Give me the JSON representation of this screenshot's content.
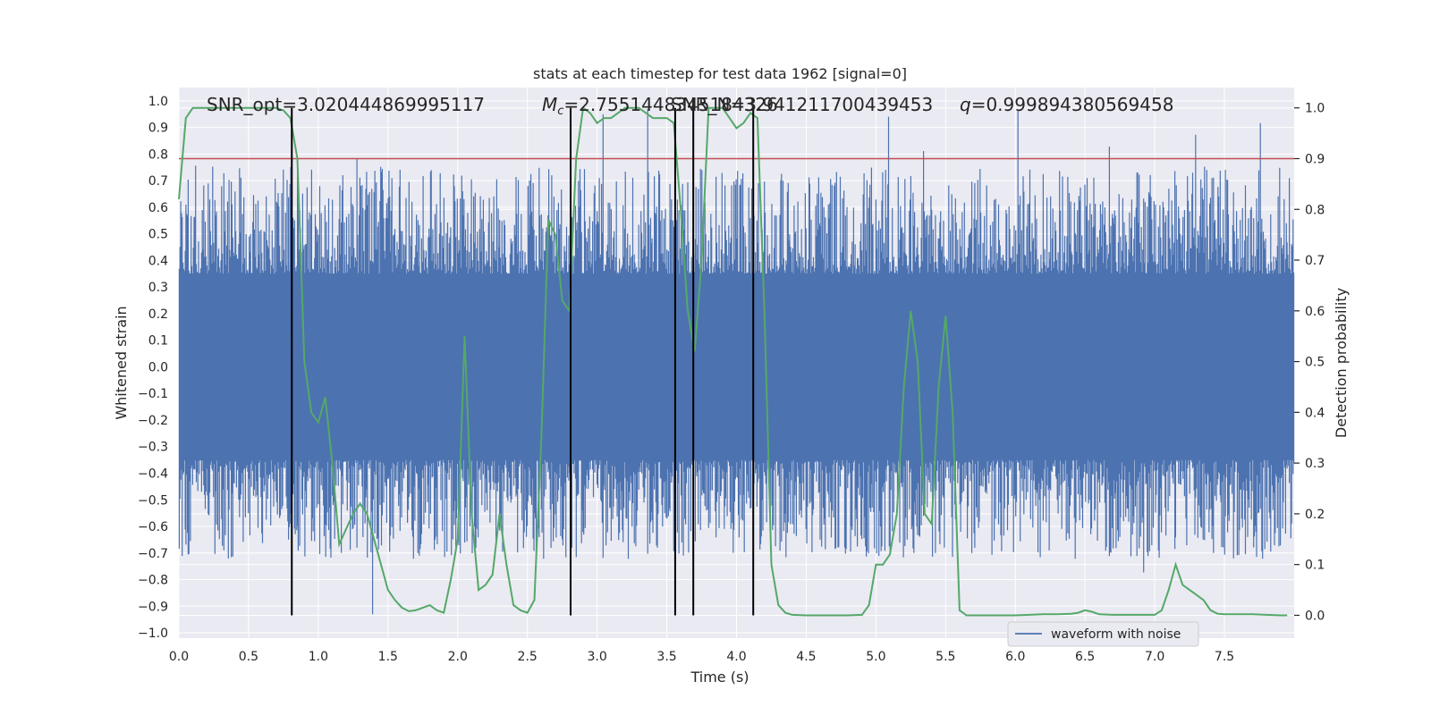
{
  "chart_data": {
    "type": "line",
    "title": "stats at each timestep for test data 1962 [signal=0]",
    "xlabel": "Time (s)",
    "ylabel": "Whitened strain",
    "y2label": "Detection probability",
    "xlim": [
      0.0,
      8.0
    ],
    "ylim": [
      -1.02,
      1.05
    ],
    "y2lim": [
      -0.045,
      1.04
    ],
    "xticks": [
      "0.0",
      "0.5",
      "1.0",
      "1.5",
      "2.0",
      "2.5",
      "3.0",
      "3.5",
      "4.0",
      "4.5",
      "5.0",
      "5.5",
      "6.0",
      "6.5",
      "7.0",
      "7.5"
    ],
    "yticks": [
      "1.0",
      "0.9",
      "0.8",
      "0.7",
      "0.6",
      "0.5",
      "0.4",
      "0.3",
      "0.2",
      "0.1",
      "0.0",
      "−0.1",
      "−0.2",
      "−0.3",
      "−0.4",
      "−0.5",
      "−0.6",
      "−0.7",
      "−0.8",
      "−0.9",
      "−1.0"
    ],
    "y2ticks": [
      "1.0",
      "0.9",
      "0.8",
      "0.7",
      "0.6",
      "0.5",
      "0.4",
      "0.3",
      "0.2",
      "0.1",
      "0.0"
    ],
    "grid": true,
    "legend": {
      "entries": [
        "waveform with noise"
      ],
      "placement": "lower-right"
    },
    "annotations": {
      "snr": "SNR_opt=3.020444869995117",
      "mc": "=2.7551448345184326",
      "mc_symbol": "M",
      "mc_sub": "c",
      "snr2": "SNR_N=3.941211700439453",
      "q": "=0.999894380569458"
    },
    "threshold": 0.9,
    "markers_x": [
      0.81,
      2.81,
      3.56,
      3.69,
      4.12
    ],
    "noise": {
      "band": 0.35,
      "spike_max": 1.0,
      "spike_min": -0.93,
      "seed": 1962
    },
    "prob_series": {
      "name": "detection probability",
      "x": [
        0.0,
        0.05,
        0.1,
        0.15,
        0.2,
        0.3,
        0.4,
        0.5,
        0.6,
        0.7,
        0.75,
        0.8,
        0.85,
        0.9,
        0.95,
        1.0,
        1.05,
        1.1,
        1.15,
        1.2,
        1.25,
        1.3,
        1.35,
        1.4,
        1.45,
        1.5,
        1.55,
        1.6,
        1.65,
        1.7,
        1.75,
        1.8,
        1.85,
        1.9,
        1.95,
        2.0,
        2.05,
        2.1,
        2.15,
        2.2,
        2.25,
        2.3,
        2.35,
        2.4,
        2.45,
        2.5,
        2.55,
        2.6,
        2.65,
        2.7,
        2.75,
        2.8,
        2.85,
        2.9,
        2.95,
        3.0,
        3.05,
        3.1,
        3.15,
        3.2,
        3.25,
        3.3,
        3.35,
        3.4,
        3.45,
        3.5,
        3.55,
        3.6,
        3.65,
        3.7,
        3.75,
        3.8,
        3.85,
        3.9,
        3.95,
        4.0,
        4.05,
        4.1,
        4.15,
        4.2,
        4.25,
        4.3,
        4.35,
        4.4,
        4.5,
        4.6,
        4.7,
        4.8,
        4.9,
        4.95,
        5.0,
        5.05,
        5.1,
        5.15,
        5.2,
        5.25,
        5.3,
        5.35,
        5.4,
        5.45,
        5.5,
        5.55,
        5.6,
        5.65,
        5.7,
        5.8,
        5.9,
        6.0,
        6.1,
        6.2,
        6.3,
        6.4,
        6.45,
        6.5,
        6.55,
        6.6,
        6.7,
        6.8,
        6.9,
        7.0,
        7.05,
        7.1,
        7.15,
        7.2,
        7.25,
        7.3,
        7.35,
        7.4,
        7.45,
        7.5,
        7.6,
        7.7,
        7.8,
        7.9,
        7.95
      ],
      "y": [
        0.82,
        0.98,
        1.0,
        1.0,
        1.0,
        1.0,
        1.0,
        1.0,
        1.0,
        1.0,
        0.995,
        0.98,
        0.9,
        0.5,
        0.4,
        0.38,
        0.43,
        0.3,
        0.14,
        0.17,
        0.2,
        0.22,
        0.2,
        0.15,
        0.1,
        0.05,
        0.03,
        0.015,
        0.008,
        0.01,
        0.015,
        0.02,
        0.01,
        0.005,
        0.07,
        0.15,
        0.55,
        0.2,
        0.05,
        0.06,
        0.08,
        0.2,
        0.1,
        0.02,
        0.01,
        0.005,
        0.03,
        0.35,
        0.78,
        0.75,
        0.62,
        0.6,
        0.9,
        1.0,
        0.99,
        0.97,
        0.98,
        0.98,
        0.99,
        1.0,
        1.0,
        1.0,
        0.99,
        0.98,
        0.98,
        0.98,
        0.97,
        0.8,
        0.6,
        0.52,
        0.7,
        1.0,
        1.0,
        1.0,
        0.98,
        0.96,
        0.97,
        0.99,
        0.98,
        0.6,
        0.1,
        0.02,
        0.005,
        0.001,
        0.0,
        0.0,
        0.0,
        0.0,
        0.001,
        0.02,
        0.1,
        0.1,
        0.12,
        0.2,
        0.45,
        0.6,
        0.5,
        0.2,
        0.18,
        0.45,
        0.59,
        0.4,
        0.01,
        0.0,
        0.0,
        0.0,
        0.0,
        0.0,
        0.001,
        0.002,
        0.002,
        0.003,
        0.005,
        0.01,
        0.007,
        0.002,
        0.001,
        0.001,
        0.001,
        0.001,
        0.01,
        0.05,
        0.1,
        0.06,
        0.05,
        0.04,
        0.03,
        0.01,
        0.003,
        0.002,
        0.002,
        0.002,
        0.001,
        0.0,
        0.0
      ]
    },
    "colors": {
      "noise": "#4c72b0",
      "prob": "#55a868",
      "threshold": "#c44e52",
      "marker": "#000000",
      "axes_bg": "#eaeaf2",
      "grid": "#ffffff"
    }
  }
}
